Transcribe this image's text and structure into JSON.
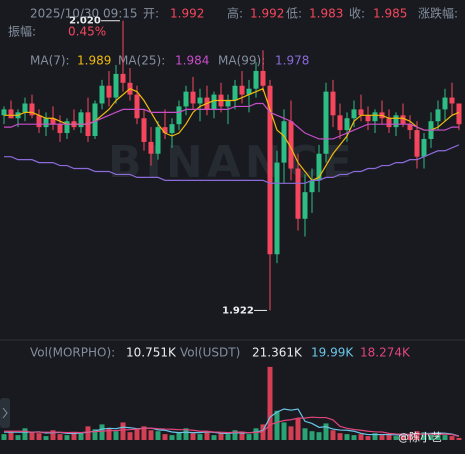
{
  "header": {
    "time": "2025/10/30 09:15",
    "open_label": "开:",
    "open": "1.992",
    "high_label": "高:",
    "high": "1.992",
    "low_label": "低:",
    "low": "1.983",
    "close_label": "收:",
    "close": "1.985",
    "change_label": "涨跌幅:",
    "amp_label": "振幅:",
    "amp": "0.45%",
    "ma7_label": "MA(7):",
    "ma7": "1.989",
    "ma25_label": "MA(25):",
    "ma25": "1.984",
    "ma99_label": "MA(99):",
    "ma99": "1.978",
    "vol_label": "Vol(MORPHO):",
    "vol": "10.751K",
    "volq_label": "Vol(USDT)",
    "volq": "21.361K",
    "volma5": "19.99K",
    "volma10": "18.274K",
    "watermark": "BINANCE",
    "user": "@陈小艺"
  },
  "chart_data": {
    "type": "candlestick",
    "up_color": "#2ebd85",
    "down_color": "#f6465d",
    "ylim": [
      1.912,
      2.027
    ],
    "vlim": [
      0,
      400
    ],
    "annotations": [
      {
        "text": "2.020",
        "value": 2.02
      },
      {
        "text": "1.922",
        "value": 1.922
      }
    ],
    "candles": [
      [
        1.988,
        1.991,
        1.985,
        1.99
      ],
      [
        1.99,
        1.993,
        1.987,
        1.987
      ],
      [
        1.987,
        1.99,
        1.984,
        1.989
      ],
      [
        1.989,
        1.994,
        1.986,
        1.992
      ],
      [
        1.992,
        1.995,
        1.987,
        1.988
      ],
      [
        1.988,
        1.99,
        1.982,
        1.984
      ],
      [
        1.984,
        1.989,
        1.981,
        1.987
      ],
      [
        1.987,
        1.991,
        1.983,
        1.985
      ],
      [
        1.985,
        1.988,
        1.979,
        1.982
      ],
      [
        1.982,
        1.987,
        1.98,
        1.986
      ],
      [
        1.986,
        1.99,
        1.983,
        1.984
      ],
      [
        1.984,
        1.99,
        1.982,
        1.989
      ],
      [
        1.989,
        1.994,
        1.979,
        1.981
      ],
      [
        1.981,
        1.993,
        1.98,
        1.992
      ],
      [
        1.992,
        2.0,
        1.99,
        1.998
      ],
      [
        1.998,
        2.003,
        1.991,
        1.994
      ],
      [
        1.994,
        2.005,
        1.992,
        2.002
      ],
      [
        2.002,
        2.02,
        1.996,
        1.999
      ],
      [
        1.999,
        2.004,
        1.993,
        1.995
      ],
      [
        1.995,
        1.998,
        1.985,
        1.987
      ],
      [
        1.987,
        1.99,
        1.976,
        1.979
      ],
      [
        1.979,
        1.984,
        1.971,
        1.975
      ],
      [
        1.975,
        1.986,
        1.973,
        1.984
      ],
      [
        1.984,
        1.99,
        1.98,
        1.982
      ],
      [
        1.982,
        1.987,
        1.977,
        1.985
      ],
      [
        1.985,
        1.993,
        1.983,
        1.991
      ],
      [
        1.991,
        1.998,
        1.988,
        1.996
      ],
      [
        1.996,
        2.001,
        1.99,
        1.992
      ],
      [
        1.992,
        1.997,
        1.986,
        1.994
      ],
      [
        1.994,
        1.998,
        1.988,
        1.99
      ],
      [
        1.99,
        1.996,
        1.987,
        1.995
      ],
      [
        1.995,
        1.999,
        1.989,
        1.991
      ],
      [
        1.991,
        1.995,
        1.985,
        1.993
      ],
      [
        1.993,
        2.0,
        1.99,
        1.998
      ],
      [
        1.998,
        2.003,
        1.992,
        1.995
      ],
      [
        1.995,
        2.0,
        1.989,
        1.997
      ],
      [
        1.997,
        2.006,
        1.994,
        2.003
      ],
      [
        2.003,
        2.01,
        1.996,
        1.998
      ],
      [
        1.998,
        2.0,
        1.922,
        1.941
      ],
      [
        1.941,
        1.976,
        1.938,
        1.972
      ],
      [
        1.972,
        1.99,
        1.965,
        1.986
      ],
      [
        1.986,
        1.993,
        1.966,
        1.97
      ],
      [
        1.97,
        1.975,
        1.949,
        1.953
      ],
      [
        1.953,
        1.968,
        1.947,
        1.962
      ],
      [
        1.962,
        1.97,
        1.955,
        1.966
      ],
      [
        1.966,
        1.978,
        1.962,
        1.975
      ],
      [
        1.975,
        1.999,
        1.972,
        1.996
      ],
      [
        1.996,
        2.0,
        1.984,
        1.988
      ],
      [
        1.988,
        1.992,
        1.98,
        1.983
      ],
      [
        1.983,
        1.989,
        1.979,
        1.987
      ],
      [
        1.987,
        1.993,
        1.984,
        1.99
      ],
      [
        1.99,
        1.995,
        1.986,
        1.988
      ],
      [
        1.988,
        1.991,
        1.983,
        1.986
      ],
      [
        1.986,
        1.99,
        1.982,
        1.989
      ],
      [
        1.989,
        1.993,
        1.985,
        1.987
      ],
      [
        1.987,
        1.99,
        1.982,
        1.984
      ],
      [
        1.984,
        1.989,
        1.981,
        1.988
      ],
      [
        1.988,
        1.992,
        1.984,
        1.985
      ],
      [
        1.985,
        1.988,
        1.98,
        1.983
      ],
      [
        1.983,
        1.986,
        1.97,
        1.974
      ],
      [
        1.974,
        1.982,
        1.97,
        1.98
      ],
      [
        1.98,
        1.989,
        1.977,
        1.986
      ],
      [
        1.986,
        1.993,
        1.983,
        1.99
      ],
      [
        1.99,
        1.997,
        1.986,
        1.994
      ],
      [
        1.994,
        1.999,
        1.988,
        1.992
      ],
      [
        1.992,
        1.992,
        1.983,
        1.985
      ]
    ],
    "volumes": [
      30,
      45,
      25,
      60,
      40,
      35,
      20,
      50,
      30,
      25,
      40,
      35,
      70,
      55,
      80,
      60,
      45,
      90,
      40,
      55,
      70,
      50,
      45,
      30,
      25,
      40,
      60,
      35,
      30,
      45,
      25,
      35,
      30,
      50,
      40,
      30,
      60,
      80,
      375,
      150,
      90,
      70,
      110,
      60,
      45,
      40,
      85,
      50,
      35,
      30,
      25,
      30,
      20,
      35,
      25,
      30,
      20,
      25,
      30,
      45,
      40,
      35,
      30,
      25,
      20,
      10.751
    ],
    "series": [
      {
        "name": "MA(7)",
        "color": "#f0b90b",
        "values": [
          1.988,
          1.988,
          1.988,
          1.989,
          1.989,
          1.988,
          1.987,
          1.987,
          1.986,
          1.985,
          1.985,
          1.985,
          1.985,
          1.986,
          1.988,
          1.99,
          1.993,
          1.995,
          1.997,
          1.996,
          1.993,
          1.989,
          1.985,
          1.982,
          1.981,
          1.982,
          1.985,
          1.989,
          1.991,
          1.992,
          1.993,
          1.993,
          1.993,
          1.993,
          1.994,
          1.995,
          1.996,
          1.997,
          1.99,
          1.983,
          1.981,
          1.977,
          1.972,
          1.969,
          1.966,
          1.967,
          1.971,
          1.975,
          1.978,
          1.981,
          1.986,
          1.988,
          1.988,
          1.988,
          1.988,
          1.987,
          1.987,
          1.987,
          1.986,
          1.984,
          1.983,
          1.983,
          1.984,
          1.986,
          1.988,
          1.989
        ]
      },
      {
        "name": "MA(25)",
        "color": "#c84ec8",
        "values": [
          1.984,
          1.984,
          1.985,
          1.985,
          1.985,
          1.985,
          1.985,
          1.985,
          1.985,
          1.985,
          1.985,
          1.985,
          1.985,
          1.986,
          1.987,
          1.988,
          1.989,
          1.99,
          1.99,
          1.99,
          1.99,
          1.989,
          1.989,
          1.989,
          1.989,
          1.989,
          1.99,
          1.99,
          1.99,
          1.99,
          1.99,
          1.99,
          1.99,
          1.991,
          1.991,
          1.991,
          1.992,
          1.992,
          1.989,
          1.988,
          1.987,
          1.986,
          1.984,
          1.982,
          1.981,
          1.98,
          1.98,
          1.98,
          1.981,
          1.982,
          1.983,
          1.984,
          1.985,
          1.985,
          1.985,
          1.985,
          1.985,
          1.985,
          1.985,
          1.984,
          1.983,
          1.983,
          1.983,
          1.983,
          1.984,
          1.984
        ]
      },
      {
        "name": "MA(99)",
        "color": "#8c6ad8",
        "values": [
          1.974,
          1.974,
          1.973,
          1.973,
          1.973,
          1.972,
          1.972,
          1.972,
          1.971,
          1.971,
          1.97,
          1.97,
          1.97,
          1.969,
          1.969,
          1.969,
          1.968,
          1.968,
          1.968,
          1.967,
          1.967,
          1.967,
          1.967,
          1.966,
          1.966,
          1.966,
          1.966,
          1.966,
          1.966,
          1.966,
          1.966,
          1.966,
          1.966,
          1.966,
          1.966,
          1.966,
          1.966,
          1.966,
          1.965,
          1.965,
          1.965,
          1.965,
          1.965,
          1.965,
          1.966,
          1.966,
          1.967,
          1.967,
          1.968,
          1.968,
          1.969,
          1.969,
          1.97,
          1.97,
          1.971,
          1.971,
          1.972,
          1.972,
          1.973,
          1.973,
          1.974,
          1.975,
          1.976,
          1.976,
          1.977,
          1.978
        ]
      }
    ],
    "volume_series": [
      {
        "name": "MA(5)",
        "color": "#6bc6e8",
        "values": [
          40,
          40,
          40,
          40,
          40,
          42,
          36,
          38,
          39,
          34,
          33,
          36,
          40,
          46,
          56,
          60,
          58,
          66,
          63,
          58,
          60,
          61,
          52,
          50,
          41,
          38,
          40,
          38,
          38,
          42,
          39,
          35,
          33,
          38,
          36,
          37,
          41,
          48,
          117,
          143,
          159,
          153,
          159,
          96,
          85,
          65,
          68,
          56,
          51,
          50,
          45,
          34,
          28,
          28,
          28,
          28,
          26,
          26,
          26,
          30,
          32,
          34,
          36,
          35,
          30,
          19.99
        ]
      },
      {
        "name": "MA(10)",
        "color": "#e0467c",
        "values": [
          45,
          45,
          45,
          45,
          40,
          40,
          40,
          40,
          40,
          38,
          39,
          38,
          42,
          43,
          45,
          48,
          48,
          52,
          53,
          56,
          59,
          61,
          58,
          56,
          55,
          53,
          53,
          50,
          45,
          45,
          41,
          40,
          38,
          40,
          41,
          37,
          39,
          43,
          78,
          90,
          100,
          104,
          112,
          113,
          117,
          115,
          115,
          103,
          70,
          60,
          54,
          50,
          45,
          42,
          41,
          34,
          31,
          30,
          29,
          30,
          30,
          30,
          29,
          30,
          28,
          18.274
        ]
      }
    ]
  }
}
